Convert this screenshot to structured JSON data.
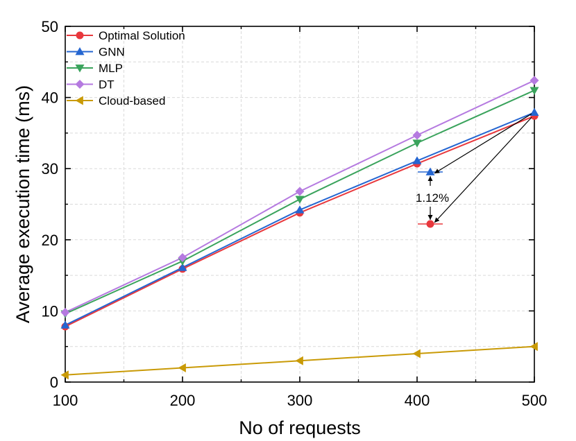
{
  "chart_data": {
    "type": "line",
    "title": "",
    "xlabel": "No of requests",
    "ylabel": "Average execution time (ms)",
    "x": [
      100,
      200,
      300,
      400,
      500
    ],
    "xlim": [
      100,
      500
    ],
    "ylim": [
      0,
      50
    ],
    "xticks": [
      "100",
      "200",
      "300",
      "400",
      "500"
    ],
    "yticks": [
      "0",
      "10",
      "20",
      "30",
      "40",
      "50"
    ],
    "grid": true,
    "legend_position": "top-left",
    "series": [
      {
        "name": "Optimal Solution",
        "color": "#e8383d",
        "marker": "circle",
        "values": [
          7.8,
          15.9,
          23.8,
          30.7,
          37.4
        ]
      },
      {
        "name": "GNN",
        "color": "#2566d1",
        "marker": "triangle-up",
        "values": [
          8.0,
          16.1,
          24.2,
          31.1,
          37.9
        ]
      },
      {
        "name": "MLP",
        "color": "#3aa35c",
        "marker": "triangle-down",
        "values": [
          9.6,
          17.0,
          25.7,
          33.6,
          41.0
        ]
      },
      {
        "name": "DT",
        "color": "#b57ae0",
        "marker": "diamond",
        "values": [
          9.8,
          17.5,
          26.8,
          34.7,
          42.4
        ]
      },
      {
        "name": "Cloud-based",
        "color": "#c99a06",
        "marker": "triangle-left",
        "values": [
          1.0,
          2.0,
          3.0,
          4.0,
          5.0
        ]
      }
    ],
    "annotations": [
      {
        "text": "1.12%",
        "description": "zoom-in difference between GNN and Optimal Solution at 500 requests"
      }
    ]
  }
}
